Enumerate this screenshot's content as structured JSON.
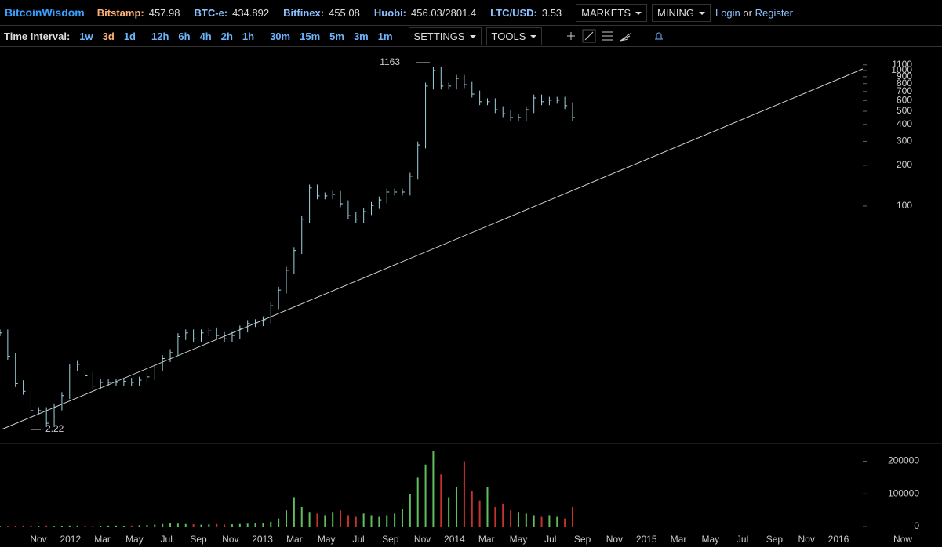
{
  "header": {
    "brand": "BitcoinWisdom",
    "tickers": [
      {
        "label": "Bitstamp:",
        "value": "457.98"
      },
      {
        "label": "BTC-e:",
        "value": "434.892"
      },
      {
        "label": "Bitfinex:",
        "value": "455.08"
      },
      {
        "label": "Huobi:",
        "value": "456.03/2801.4"
      },
      {
        "label": "LTC/USD:",
        "value": "3.53"
      }
    ],
    "menus": [
      "MARKETS",
      "MINING"
    ],
    "login": "Login",
    "or": "or",
    "register": "Register"
  },
  "toolbar": {
    "label": "Time Interval:",
    "intervals": [
      "1w",
      "3d",
      "1d",
      "12h",
      "6h",
      "4h",
      "2h",
      "1h",
      "30m",
      "15m",
      "5m",
      "3m",
      "1m"
    ],
    "active": "3d",
    "settings": "SETTINGS",
    "tools": "TOOLS"
  },
  "chart_data": {
    "type": "stock",
    "high": 1163,
    "low": 2.22,
    "price": {
      "values": [
        11.6,
        7.8,
        4.9,
        4.3,
        3.1,
        3.1,
        2.5,
        3.3,
        4.0,
        6.4,
        6.8,
        5.6,
        4.7,
        5.0,
        5.0,
        5.0,
        5.1,
        5.0,
        5.2,
        5.5,
        6.4,
        7.5,
        8.3,
        10.9,
        11.6,
        10.5,
        11.6,
        12.0,
        11.1,
        10.5,
        11.1,
        12.4,
        13.6,
        13.8,
        14.5,
        18.4,
        24,
        33.6,
        47,
        80,
        136,
        119,
        119,
        122,
        104,
        85,
        80,
        91,
        101,
        111,
        127,
        127,
        127,
        166,
        282,
        767,
        1000,
        767,
        767,
        875,
        786,
        670,
        588,
        588,
        514,
        480,
        450,
        450,
        514,
        627,
        588,
        603,
        603,
        550,
        450
      ],
      "color": "#9fd3e0",
      "log_scale": true,
      "ylim": [
        1.77,
        1490
      ],
      "yticks": [
        1100,
        1000,
        900,
        800,
        700,
        600,
        500,
        400,
        300,
        200,
        100
      ]
    },
    "volume": {
      "values": [
        2000,
        2000,
        2500,
        3000,
        3000,
        2500,
        3000,
        2000,
        2500,
        3000,
        3000,
        2500,
        2000,
        2500,
        3000,
        3000,
        2500,
        3000,
        4000,
        5000,
        6000,
        8000,
        10000,
        9000,
        8000,
        7000,
        6000,
        7000,
        8000,
        6000,
        7000,
        8000,
        9000,
        10000,
        12000,
        15000,
        25000,
        50000,
        90000,
        60000,
        45000,
        40000,
        35000,
        45000,
        50000,
        35000,
        30000,
        40000,
        35000,
        30000,
        35000,
        40000,
        55000,
        100000,
        150000,
        190000,
        230000,
        160000,
        90000,
        120000,
        200000,
        110000,
        80000,
        120000,
        60000,
        70000,
        50000,
        45000,
        40000,
        35000,
        30000,
        35000,
        30000,
        25000,
        60000
      ],
      "up_color": "#5fbf5f",
      "down_color": "#c8322d",
      "ylim": [
        -19000,
        254000
      ],
      "yticks": [
        0,
        100000,
        200000
      ]
    },
    "x_labels": [
      "Nov",
      "2012",
      "Mar",
      "May",
      "Jul",
      "Sep",
      "Nov",
      "2013",
      "Mar",
      "May",
      "Jul",
      "Sep",
      "Nov",
      "2014",
      "Mar",
      "May",
      "Jul",
      "Sep",
      "Nov",
      "2015",
      "Mar",
      "May",
      "Jul",
      "Sep",
      "Nov",
      "2016",
      "Now"
    ]
  }
}
